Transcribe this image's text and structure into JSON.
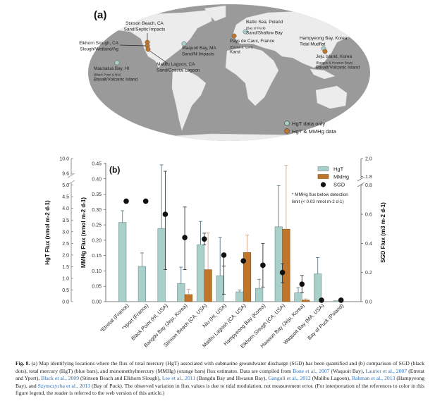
{
  "panel_a": {
    "label": "(a)",
    "sites": [
      {
        "lines": [
          "Stinson Beach, CA",
          "Sand/Septic Impacts"
        ],
        "type": "mmhg"
      },
      {
        "lines": [
          "Elkhorn Slough, CA",
          "Slough/Wetland/Ag"
        ],
        "type": "mmhg"
      },
      {
        "lines": [
          "Malibu Lagoon, CA",
          "Sand/Coastal Lagoon"
        ],
        "type": "mmhg"
      },
      {
        "lines": [
          "Maunalua Bay, HI",
          "(Black Point & Niu)",
          "Basalt/Volcanic Island"
        ],
        "type": "hgt"
      },
      {
        "lines": [
          "Waquoit Bay, MA",
          "Sand/N-Impacts"
        ],
        "type": "hgt"
      },
      {
        "lines": [
          "Baltic Sea, Poland",
          "(Bay of Puck)",
          "Sand/Shallow Bay"
        ],
        "type": "hgt"
      },
      {
        "lines": [
          "Pays de Caux, France",
          "(Etretat & Yport)",
          "Karst"
        ],
        "type": "mmhg"
      },
      {
        "lines": [
          "Hampyeong Bay, Korea",
          "Tidal Mudflat"
        ],
        "type": "hgt"
      },
      {
        "lines": [
          "Jeju Island, Korea",
          "(Bangdu & Hwasun Bays)",
          "Basalt/Volcanic Island"
        ],
        "type": "mmhg"
      }
    ],
    "legend": [
      {
        "label": "HgT data only",
        "color": "#a9cfcb"
      },
      {
        "label": "HgT & MMHg data",
        "color": "#c0762a"
      }
    ]
  },
  "chart_data": {
    "type": "bar",
    "panel_label": "(b)",
    "categories": [
      "*Etretat (France)",
      "*Yport (France)",
      "Black Point (HI, USA)",
      "Bangdu Bay (Jeju, Korea)",
      "Stinson Beach (CA, USA)",
      "Niu (HI, USA)",
      "Malibu Lagoon (CA, USA)",
      "Hampyeong Bay (Korea)",
      "Elkhorn Slough (CA, USA)",
      "Hwasun Bay (Jeju, Korea)",
      "Waquoit Bay (MA, USA)",
      "Bay of Puck (Poland)"
    ],
    "series": [
      {
        "name": "HgT",
        "axis": "HgT",
        "color": "#a9cfcb",
        "values": [
          3.4,
          1.51,
          3.14,
          0.78,
          2.44,
          1.11,
          0.42,
          0.57,
          3.21,
          0.38,
          1.19,
          0.04
        ],
        "error_upper": [
          3.9,
          2.09,
          9.83,
          1.48,
          3.44,
          2.76,
          0.5,
          0.96,
          4.98,
          0.6,
          1.89,
          null
        ]
      },
      {
        "name": "MMHg",
        "axis": "MMHg",
        "color": "#c0762a",
        "values": [
          null,
          null,
          null,
          0.023,
          0.104,
          null,
          0.16,
          null,
          0.236,
          0.005,
          null,
          null
        ],
        "error_upper": [
          null,
          null,
          null,
          0.04,
          0.224,
          null,
          0.217,
          null,
          0.444,
          0.009,
          null,
          null
        ]
      },
      {
        "name": "SGD",
        "axis": "SGD",
        "color": "#111111",
        "values": [
          0.69,
          0.69,
          0.6,
          0.44,
          0.43,
          0.32,
          0.28,
          0.25,
          0.2,
          0.12,
          0.01,
          0.01
        ],
        "error_upper": [
          null,
          null,
          1.86,
          0.65,
          0.47,
          0.81,
          null,
          0.4,
          0.26,
          0.18,
          null,
          null
        ],
        "error_lower": [
          null,
          null,
          0.22,
          0.22,
          0.39,
          0.05,
          null,
          0.1,
          0.13,
          0.06,
          null,
          null
        ]
      }
    ],
    "axes": {
      "HgT": {
        "label": "HgT Flux (nmol m-2 d-1)",
        "ticks": [
          "0.0",
          "0.5",
          "1.0",
          "1.5",
          "2.0",
          "2.5",
          "3.0",
          "3.5",
          "4.0",
          "4.5",
          "5.0",
          "9.6",
          "10.0"
        ],
        "range": [
          0,
          10
        ],
        "break": [
          5.0,
          9.6
        ]
      },
      "MMHg": {
        "label": "MMHg Flux (nmol m-2 d-1)",
        "ticks": [
          "0.00",
          "0.05",
          "0.10",
          "0.15",
          "0.20",
          "0.25",
          "0.30",
          "0.35",
          "0.40",
          "0.45"
        ],
        "range": [
          0,
          0.45
        ]
      },
      "SGD": {
        "label": "SGD Flux (m3 m-2 d-1)",
        "ticks": [
          "0.0",
          "0.2",
          "0.4",
          "0.6",
          "0.8",
          "1.8",
          "2.0"
        ],
        "range": [
          0,
          2.0
        ],
        "break": [
          0.8,
          1.8
        ]
      }
    },
    "legend_placement": "top-right",
    "note": [
      "* MMHg flux below detection",
      "limit (< 0.03 nmol m-2 d-1)"
    ]
  },
  "caption": {
    "fig": "Fig. 8.",
    "segments": [
      {
        "t": " (a) Map identifying locations where the flux of total mercury (HgT) associated with submarine groundwater discharge (SGD) has been quantified and (b) comparison of SGD (black dots), total mercury (HgT) (blue bars), and monomethylmercury (MMHg) (orange bars) flux estimates. Data are compiled from "
      },
      {
        "t": "Bone et al., 2007",
        "link": true
      },
      {
        "t": " (Waquoit Bay), "
      },
      {
        "t": "Laurier et al., 2007",
        "link": true
      },
      {
        "t": " (Etretat and Yport), "
      },
      {
        "t": "Black et al., 2009",
        "link": true
      },
      {
        "t": " (Stinson Beach and Elkhorn Slough), "
      },
      {
        "t": "Lee et al., 2011",
        "link": true
      },
      {
        "t": " (Bangdu Bay and Hwasun Bay), "
      },
      {
        "t": "Ganguli et al., 2012",
        "link": true
      },
      {
        "t": " (Malibu Lagoon), "
      },
      {
        "t": "Rahman et al., 2013",
        "link": true
      },
      {
        "t": " (Hampyeong Bay), and "
      },
      {
        "t": "Szymczycha et al., 2013",
        "link": true
      },
      {
        "t": " (Bay of Puck). The observed variation in flux values is due to tidal modulation, not measurement error. (For interpretation of the references to color in this figure legend, the reader is referred to the web version of this article.)"
      }
    ]
  }
}
